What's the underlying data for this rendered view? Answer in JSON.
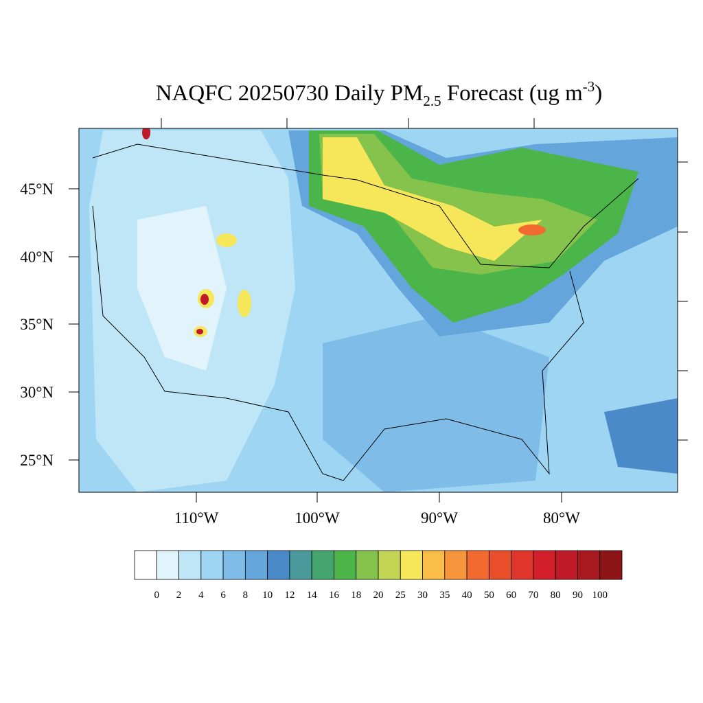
{
  "header": {
    "title": {
      "main": "NAQFC 20250730 Daily PM",
      "sub": "2.5",
      "rest": " Forecast (ug m",
      "sup": "-3",
      "end": ")"
    }
  },
  "map": {
    "lat_labels": [
      "45°N",
      "40°N",
      "35°N",
      "30°N",
      "25°N"
    ],
    "lon_labels": [
      "110°W",
      "100°W",
      "90°W",
      "80°W"
    ]
  },
  "colorbar": {
    "labels": [
      0,
      2,
      4,
      6,
      8,
      10,
      12,
      14,
      16,
      18,
      20,
      25,
      30,
      35,
      40,
      50,
      60,
      70,
      80,
      90,
      100
    ],
    "colors": [
      "#ffffff",
      "#e1f3fb",
      "#bfe6f7",
      "#9dd5f3",
      "#7fbde8",
      "#64a6db",
      "#4a8ac8",
      "#4a9a9c",
      "#44a56f",
      "#4cb549",
      "#86c34c",
      "#c2d555",
      "#f6e65a",
      "#f9bd48",
      "#f7953c",
      "#f26a2f",
      "#ea4f2c",
      "#e0352a",
      "#d31f2a",
      "#be1a27",
      "#a8191f",
      "#8d1518"
    ]
  }
}
